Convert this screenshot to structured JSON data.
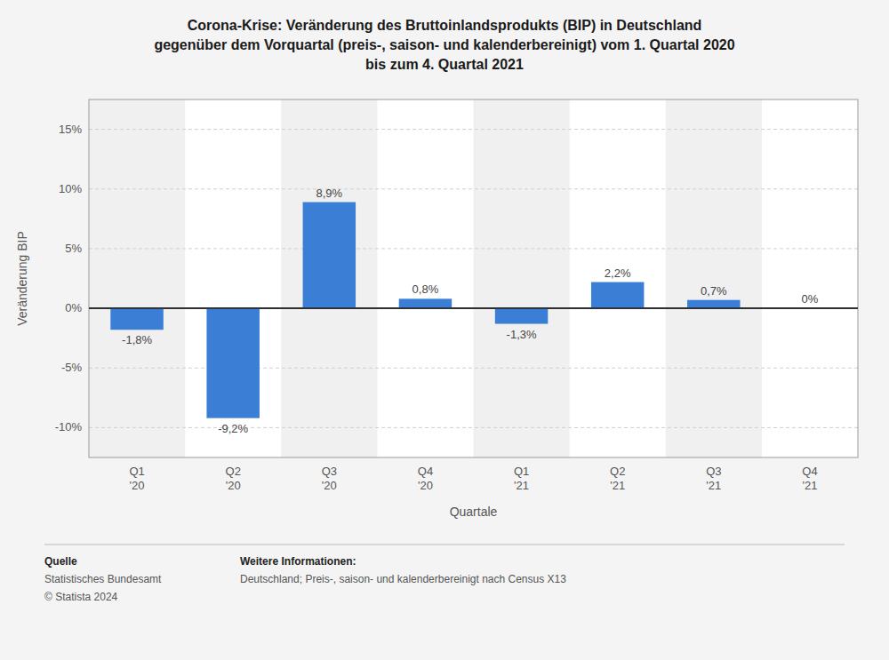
{
  "chart_data": {
    "type": "bar",
    "title": "Corona-Krise: Veränderung des Bruttoinlandsprodukts (BIP) in Deutschland\ngegenüber dem Vorquartal (preis-, saison- und kalenderbereinigt) vom 1. Quartal 2020\nbis zum 4. Quartal 2021",
    "x_label": "Quartale",
    "y_label": "Veränderung BIP",
    "categories": [
      "Q1\n'20",
      "Q2\n'20",
      "Q3\n'20",
      "Q4\n'20",
      "Q1\n'21",
      "Q2\n'21",
      "Q3\n'21",
      "Q4\n'21"
    ],
    "values": [
      -1.8,
      -9.2,
      8.9,
      0.8,
      -1.3,
      2.2,
      0.7,
      0.0
    ],
    "value_labels": [
      "-1,8%",
      "-9,2%",
      "8,9%",
      "0,8%",
      "-1,3%",
      "2,2%",
      "0,7%",
      "0%"
    ],
    "data_labels": true,
    "color": "#3a7fd5",
    "ylim": [
      -12.5,
      17.5
    ],
    "yticks": [
      {
        "value": -10,
        "label": "-10%"
      },
      {
        "value": -5,
        "label": "-5%"
      },
      {
        "value": 0,
        "label": "0%"
      },
      {
        "value": 5,
        "label": "5%"
      },
      {
        "value": 10,
        "label": "10%"
      },
      {
        "value": 15,
        "label": "15%"
      }
    ],
    "grid": true,
    "annotations": [
      "Quelle",
      "Statistisches Bundesamt",
      "© Statista 2024",
      "Weitere Informationen:",
      "Deutschland; Preis-, saison- und kalenderbereinigt nach Census X13"
    ]
  }
}
